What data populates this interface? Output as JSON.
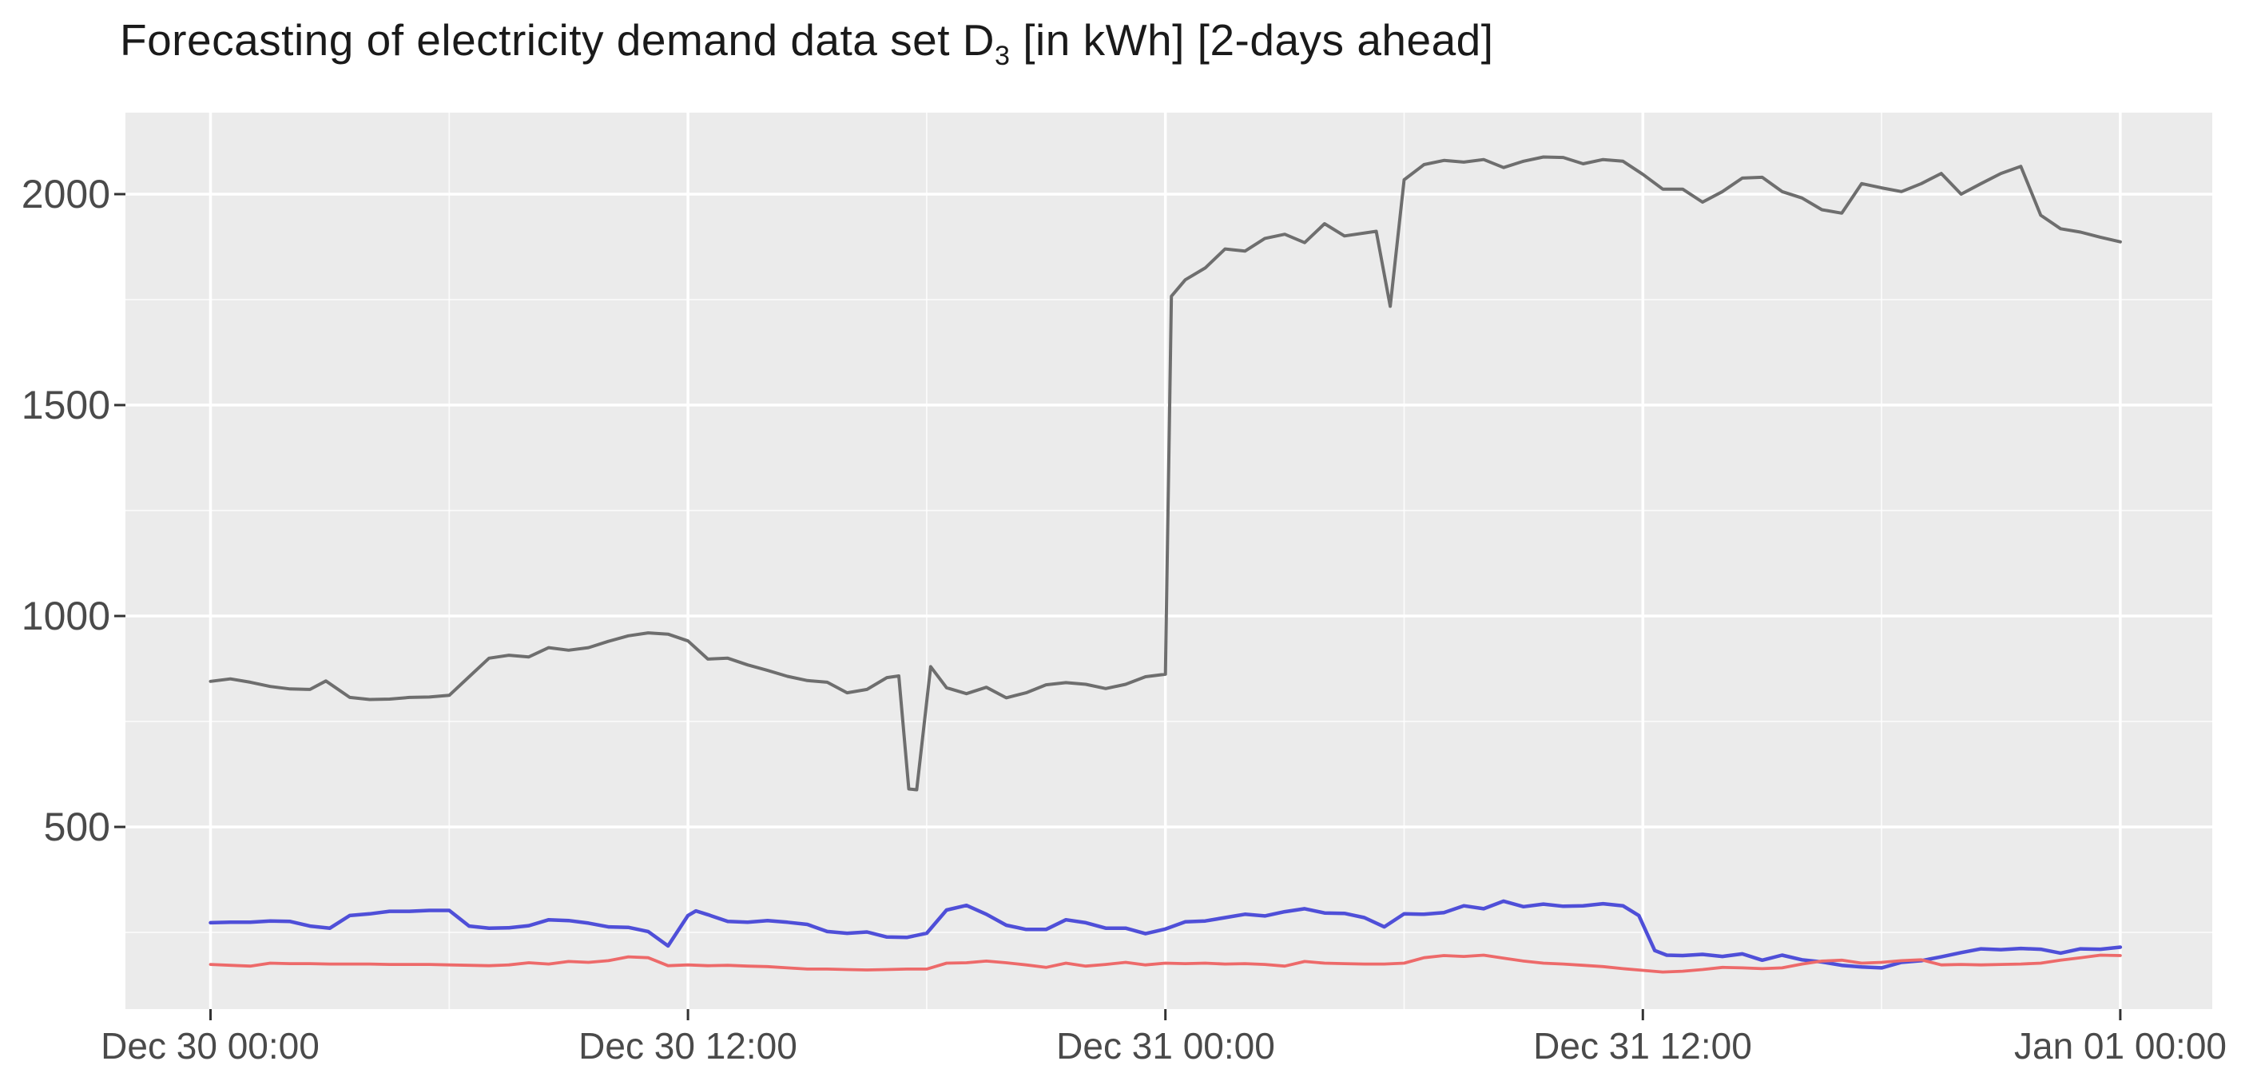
{
  "page": {
    "title_prefix": "Forecasting of electricity demand data set D",
    "title_sub": "3",
    "title_suffix": " [in kWh] [2-days ahead]"
  },
  "chart_data": {
    "type": "line",
    "title": "Forecasting of electricity demand data set D3 [in kWh] [2-days ahead]",
    "xlabel": "",
    "ylabel": "",
    "legend_position": "none",
    "grid": {
      "background": "#ebebeb",
      "major_color": "#ffffff",
      "minor_color": "#ffffff",
      "grid_on": true
    },
    "x_axis": {
      "unit": "datetime",
      "tick_labels": [
        "Dec 30 00:00",
        "Dec 30 12:00",
        "Dec 31 00:00",
        "Dec 31 12:00",
        "Jan 01 00:00"
      ],
      "tick_hours": [
        0,
        12,
        24,
        36,
        48
      ],
      "minor_tick_hours": [
        6,
        18,
        30,
        42
      ],
      "range_hours": [
        -2.1,
        50.3
      ]
    },
    "y_axis": {
      "tick_labels": [
        "2000",
        "1500",
        "1000",
        "500"
      ],
      "tick_values": [
        2000,
        1500,
        1000,
        500
      ],
      "minor_tick_values": [
        1750,
        1250,
        750,
        250
      ],
      "range": [
        68,
        2193
      ]
    },
    "time_start_label": "Dec 30 00:00",
    "time_step_minutes": 30,
    "series": [
      {
        "name": "demand-gray-line",
        "color": "#6e6e6e",
        "width": 4,
        "points": [
          [
            0,
            845
          ],
          [
            0.5,
            851
          ],
          [
            1,
            843
          ],
          [
            1.5,
            833
          ],
          [
            2,
            827
          ],
          [
            2.5,
            826
          ],
          [
            2.9,
            846
          ],
          [
            3.5,
            807
          ],
          [
            4,
            802
          ],
          [
            4.5,
            803
          ],
          [
            5,
            807
          ],
          [
            5.5,
            808
          ],
          [
            6,
            812
          ],
          [
            6.5,
            856
          ],
          [
            7,
            900
          ],
          [
            7.5,
            907
          ],
          [
            8,
            903
          ],
          [
            8.5,
            925
          ],
          [
            9,
            919
          ],
          [
            9.5,
            925
          ],
          [
            10,
            940
          ],
          [
            10.5,
            953
          ],
          [
            11,
            960
          ],
          [
            11.5,
            957
          ],
          [
            12,
            941
          ],
          [
            12.5,
            898
          ],
          [
            13,
            900
          ],
          [
            13.5,
            884
          ],
          [
            14,
            871
          ],
          [
            14.5,
            857
          ],
          [
            15,
            847
          ],
          [
            15.5,
            843
          ],
          [
            16,
            818
          ],
          [
            16.5,
            826
          ],
          [
            17,
            854
          ],
          [
            17.3,
            858
          ],
          [
            17.55,
            590
          ],
          [
            17.75,
            588
          ],
          [
            18.1,
            880
          ],
          [
            18.5,
            830
          ],
          [
            19,
            816
          ],
          [
            19.5,
            831
          ],
          [
            20,
            806
          ],
          [
            20.5,
            818
          ],
          [
            21,
            837
          ],
          [
            21.5,
            842
          ],
          [
            22,
            838
          ],
          [
            22.5,
            828
          ],
          [
            23,
            838
          ],
          [
            23.5,
            856
          ],
          [
            24,
            862
          ],
          [
            24.15,
            1758
          ],
          [
            24.5,
            1797
          ],
          [
            25,
            1825
          ],
          [
            25.5,
            1870
          ],
          [
            26,
            1865
          ],
          [
            26.5,
            1895
          ],
          [
            27,
            1905
          ],
          [
            27.5,
            1885
          ],
          [
            28,
            1930
          ],
          [
            28.5,
            1901
          ],
          [
            29.3,
            1912
          ],
          [
            29.65,
            1734
          ],
          [
            30,
            2034
          ],
          [
            30.5,
            2070
          ],
          [
            31,
            2080
          ],
          [
            31.5,
            2076
          ],
          [
            32,
            2082
          ],
          [
            32.5,
            2063
          ],
          [
            33,
            2078
          ],
          [
            33.5,
            2088
          ],
          [
            34,
            2087
          ],
          [
            34.5,
            2072
          ],
          [
            35,
            2082
          ],
          [
            35.5,
            2078
          ],
          [
            36,
            2047
          ],
          [
            36.5,
            2012
          ],
          [
            37,
            2012
          ],
          [
            37.5,
            1981
          ],
          [
            38,
            2006
          ],
          [
            38.5,
            2038
          ],
          [
            39,
            2040
          ],
          [
            39.5,
            2006
          ],
          [
            40,
            1991
          ],
          [
            40.5,
            1963
          ],
          [
            41,
            1955
          ],
          [
            41.5,
            2025
          ],
          [
            42,
            2015
          ],
          [
            42.5,
            2006
          ],
          [
            43,
            2025
          ],
          [
            43.5,
            2049
          ],
          [
            44,
            2000
          ],
          [
            44.5,
            2025
          ],
          [
            45,
            2049
          ],
          [
            45.5,
            2066
          ],
          [
            46,
            1950
          ],
          [
            46.5,
            1918
          ],
          [
            47,
            1910
          ],
          [
            47.5,
            1898
          ],
          [
            48,
            1887
          ]
        ]
      },
      {
        "name": "blue-line",
        "color": "#4f4fd8",
        "width": 4.5,
        "points": [
          [
            0,
            273
          ],
          [
            0.5,
            274
          ],
          [
            1,
            274
          ],
          [
            1.5,
            277
          ],
          [
            2,
            276
          ],
          [
            2.5,
            265
          ],
          [
            3,
            260
          ],
          [
            3.5,
            290
          ],
          [
            4,
            294
          ],
          [
            4.5,
            300
          ],
          [
            5,
            300
          ],
          [
            5.5,
            302
          ],
          [
            6,
            302
          ],
          [
            6.5,
            265
          ],
          [
            7,
            260
          ],
          [
            7.5,
            261
          ],
          [
            8,
            266
          ],
          [
            8.5,
            280
          ],
          [
            9,
            278
          ],
          [
            9.5,
            272
          ],
          [
            10,
            263
          ],
          [
            10.5,
            262
          ],
          [
            11,
            252
          ],
          [
            11.5,
            218
          ],
          [
            12,
            290
          ],
          [
            12.2,
            301
          ],
          [
            12.5,
            292
          ],
          [
            13,
            276
          ],
          [
            13.5,
            274
          ],
          [
            14,
            278
          ],
          [
            14.5,
            274
          ],
          [
            15,
            269
          ],
          [
            15.5,
            252
          ],
          [
            16,
            248
          ],
          [
            16.5,
            251
          ],
          [
            17,
            239
          ],
          [
            17.5,
            238
          ],
          [
            18,
            248
          ],
          [
            18.5,
            303
          ],
          [
            19,
            314
          ],
          [
            19.5,
            293
          ],
          [
            20,
            267
          ],
          [
            20.5,
            257
          ],
          [
            21,
            257
          ],
          [
            21.5,
            280
          ],
          [
            22,
            273
          ],
          [
            22.5,
            260
          ],
          [
            23,
            260
          ],
          [
            23.5,
            247
          ],
          [
            24,
            258
          ],
          [
            24.5,
            275
          ],
          [
            25,
            277
          ],
          [
            25.5,
            285
          ],
          [
            26,
            293
          ],
          [
            26.5,
            289
          ],
          [
            27,
            299
          ],
          [
            27.5,
            306
          ],
          [
            28,
            296
          ],
          [
            28.5,
            295
          ],
          [
            29,
            285
          ],
          [
            29.5,
            263
          ],
          [
            30,
            294
          ],
          [
            30.5,
            293
          ],
          [
            31,
            297
          ],
          [
            31.5,
            313
          ],
          [
            32,
            306
          ],
          [
            32.5,
            324
          ],
          [
            33,
            311
          ],
          [
            33.5,
            317
          ],
          [
            34,
            312
          ],
          [
            34.5,
            313
          ],
          [
            35,
            318
          ],
          [
            35.5,
            313
          ],
          [
            35.9,
            290
          ],
          [
            36.3,
            207
          ],
          [
            36.6,
            196
          ],
          [
            37,
            195
          ],
          [
            37.5,
            198
          ],
          [
            38,
            193
          ],
          [
            38.5,
            199
          ],
          [
            39,
            184
          ],
          [
            39.5,
            196
          ],
          [
            40,
            185
          ],
          [
            40.5,
            180
          ],
          [
            41,
            172
          ],
          [
            41.5,
            168
          ],
          [
            42,
            166
          ],
          [
            42.5,
            179
          ],
          [
            43,
            183
          ],
          [
            43.5,
            192
          ],
          [
            44,
            202
          ],
          [
            44.5,
            211
          ],
          [
            45,
            209
          ],
          [
            45.5,
            212
          ],
          [
            46,
            210
          ],
          [
            46.5,
            201
          ],
          [
            47,
            211
          ],
          [
            47.5,
            210
          ],
          [
            48,
            215
          ]
        ]
      },
      {
        "name": "red-line",
        "color": "#ed6a6a",
        "width": 3.8,
        "points": [
          [
            0,
            174
          ],
          [
            0.5,
            172
          ],
          [
            1,
            170
          ],
          [
            1.5,
            177
          ],
          [
            2,
            176
          ],
          [
            2.5,
            176
          ],
          [
            3,
            175
          ],
          [
            3.5,
            175
          ],
          [
            4,
            175
          ],
          [
            4.5,
            174
          ],
          [
            5,
            174
          ],
          [
            5.5,
            174
          ],
          [
            6,
            173
          ],
          [
            6.5,
            172
          ],
          [
            7,
            171
          ],
          [
            7.5,
            173
          ],
          [
            8,
            178
          ],
          [
            8.5,
            175
          ],
          [
            9,
            181
          ],
          [
            9.5,
            179
          ],
          [
            10,
            183
          ],
          [
            10.5,
            192
          ],
          [
            11,
            190
          ],
          [
            11.5,
            171
          ],
          [
            12,
            173
          ],
          [
            12.5,
            171
          ],
          [
            13,
            172
          ],
          [
            13.5,
            170
          ],
          [
            14,
            169
          ],
          [
            14.5,
            166
          ],
          [
            15,
            163
          ],
          [
            15.5,
            163
          ],
          [
            16,
            162
          ],
          [
            16.5,
            161
          ],
          [
            17,
            162
          ],
          [
            17.5,
            163
          ],
          [
            18,
            163
          ],
          [
            18.5,
            177
          ],
          [
            19,
            178
          ],
          [
            19.5,
            182
          ],
          [
            20,
            178
          ],
          [
            20.5,
            173
          ],
          [
            21,
            167
          ],
          [
            21.5,
            177
          ],
          [
            22,
            170
          ],
          [
            22.5,
            174
          ],
          [
            23,
            179
          ],
          [
            23.5,
            173
          ],
          [
            24,
            177
          ],
          [
            24.5,
            176
          ],
          [
            25,
            177
          ],
          [
            25.5,
            175
          ],
          [
            26,
            176
          ],
          [
            26.5,
            174
          ],
          [
            27,
            170
          ],
          [
            27.5,
            181
          ],
          [
            28,
            177
          ],
          [
            28.5,
            176
          ],
          [
            29,
            175
          ],
          [
            29.5,
            175
          ],
          [
            30,
            177
          ],
          [
            30.5,
            190
          ],
          [
            31,
            195
          ],
          [
            31.5,
            193
          ],
          [
            32,
            196
          ],
          [
            32.5,
            189
          ],
          [
            33,
            182
          ],
          [
            33.5,
            177
          ],
          [
            34,
            175
          ],
          [
            34.5,
            172
          ],
          [
            35,
            169
          ],
          [
            35.5,
            164
          ],
          [
            36,
            160
          ],
          [
            36.5,
            156
          ],
          [
            37,
            158
          ],
          [
            37.5,
            162
          ],
          [
            38,
            167
          ],
          [
            38.5,
            166
          ],
          [
            39,
            164
          ],
          [
            39.5,
            166
          ],
          [
            40,
            175
          ],
          [
            40.5,
            182
          ],
          [
            41,
            184
          ],
          [
            41.5,
            177
          ],
          [
            42,
            179
          ],
          [
            42.5,
            183
          ],
          [
            43,
            185
          ],
          [
            43.5,
            173
          ],
          [
            44,
            174
          ],
          [
            44.5,
            173
          ],
          [
            45,
            174
          ],
          [
            45.5,
            175
          ],
          [
            46,
            177
          ],
          [
            46.5,
            184
          ],
          [
            47,
            190
          ],
          [
            47.5,
            196
          ],
          [
            48,
            195
          ]
        ]
      }
    ]
  }
}
